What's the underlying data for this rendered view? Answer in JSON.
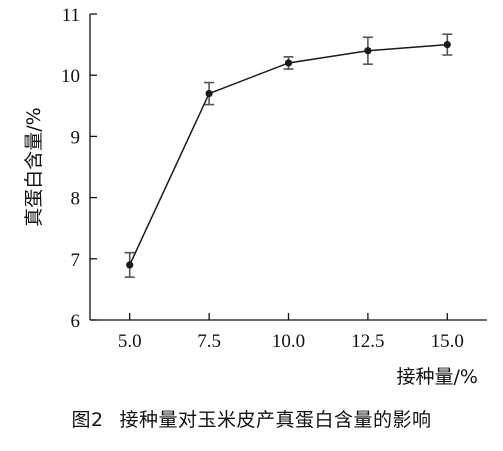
{
  "caption": {
    "figure_number": "图2",
    "text": "接种量对玉米皮产真蛋白含量的影响"
  },
  "chart_data": {
    "type": "line",
    "title": "",
    "xlabel": "接种量/%",
    "ylabel": "真蛋白含量/%",
    "x": [
      5.0,
      7.5,
      10.0,
      12.5,
      15.0
    ],
    "x_tick_labels": [
      "5.0",
      "7.5",
      "10.0",
      "12.5",
      "15.0"
    ],
    "y_ticks": [
      6,
      7,
      8,
      9,
      10,
      11
    ],
    "y_tick_labels": [
      "6",
      "7",
      "8",
      "9",
      "10",
      "11"
    ],
    "xlim": [
      3.75,
      16.25
    ],
    "ylim": [
      6,
      11
    ],
    "grid": false,
    "legend": "none",
    "series": [
      {
        "values": [
          6.9,
          9.7,
          10.2,
          10.4,
          10.5
        ],
        "errors": [
          0.2,
          0.18,
          0.1,
          0.22,
          0.17
        ]
      }
    ],
    "color": "#1a1a1a",
    "errorbar_color": "#555555"
  }
}
